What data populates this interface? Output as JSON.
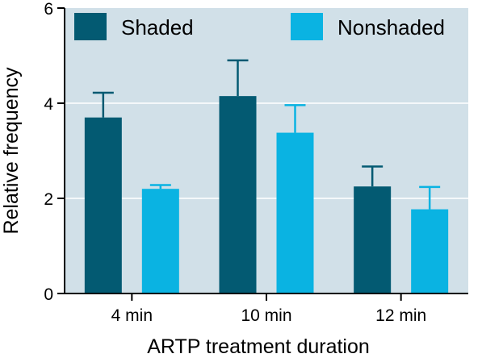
{
  "chart_data": {
    "type": "bar",
    "categories": [
      "4 min",
      "10 min",
      "12 min"
    ],
    "series": [
      {
        "name": "Shaded",
        "color": "#035a72",
        "values": [
          3.7,
          4.15,
          2.25
        ],
        "errors": [
          0.52,
          0.75,
          0.42
        ]
      },
      {
        "name": "Nonshaded",
        "color": "#0ab3e2",
        "values": [
          2.2,
          3.38,
          1.77
        ],
        "errors": [
          0.08,
          0.58,
          0.47
        ]
      }
    ],
    "xlabel": "ARTP treatment duration",
    "ylabel": "Relative frequency",
    "ylim": [
      0,
      6
    ],
    "yticks": [
      0,
      2,
      4,
      6
    ],
    "plot_background": "#d1e0e8",
    "grid": {
      "y": true,
      "color": "#ffffff"
    },
    "legend": {
      "position": "top",
      "orientation": "horizontal"
    }
  }
}
